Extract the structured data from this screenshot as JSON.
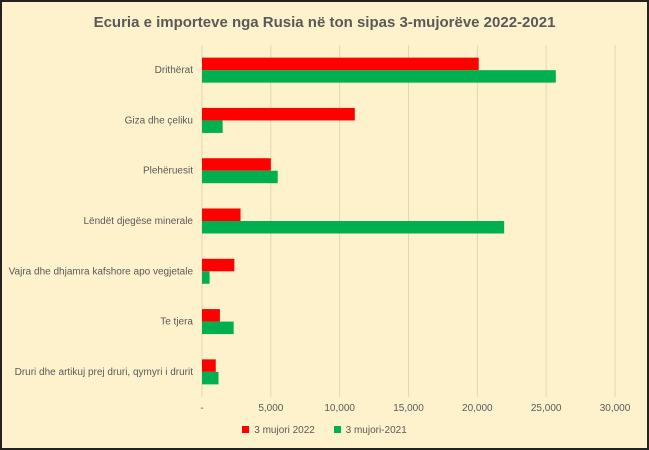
{
  "chart_data": {
    "type": "bar",
    "orientation": "horizontal",
    "title": "Ecuria e importeve nga Rusia në ton sipas 3-mujorëve 2022-2021",
    "categories": [
      "Drithërat",
      "Giza dhe çeliku",
      "Plehëruesit",
      "Lëndët djegëse minerale",
      "Vajra dhe dhjamra kafshore apo vegjetale",
      "Te tjera",
      "Druri dhe artikuj prej druri, qymyri i drurit"
    ],
    "series": [
      {
        "name": "3 mujori 2022",
        "color": "#ff0000",
        "values": [
          20100,
          11100,
          5000,
          2800,
          2350,
          1300,
          1000
        ]
      },
      {
        "name": "3 mujori-2021",
        "color": "#00b050",
        "values": [
          25700,
          1500,
          5500,
          21950,
          550,
          2300,
          1200
        ]
      }
    ],
    "xlim": [
      0,
      30000
    ],
    "xticks": [
      0,
      5000,
      10000,
      15000,
      20000,
      25000,
      30000
    ],
    "xtick_labels": [
      "-",
      "5,000",
      "10,000",
      "15,000",
      "20,000",
      "25,000",
      "30,000"
    ],
    "grid": true,
    "legend_position": "bottom"
  }
}
